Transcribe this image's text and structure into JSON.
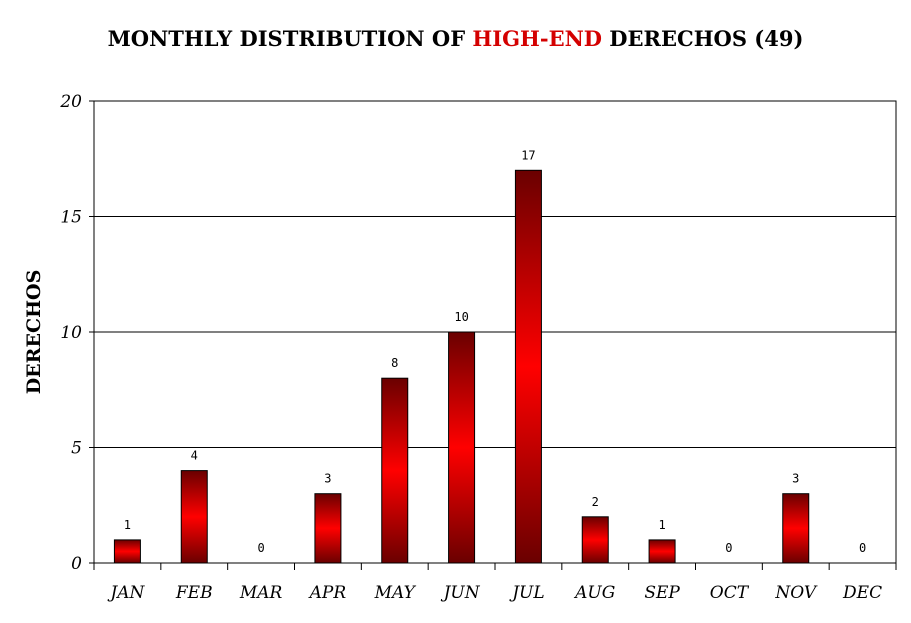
{
  "chart_data": {
    "type": "bar",
    "title_parts": [
      "MONTHLY DISTRIBUTION OF ",
      "HIGH-END",
      " DERECHOS (49)"
    ],
    "title_highlight_color": "#d40000",
    "xlabel": "",
    "ylabel": "DERECHOS",
    "categories": [
      "JAN",
      "FEB",
      "MAR",
      "APR",
      "MAY",
      "JUN",
      "JUL",
      "AUG",
      "SEP",
      "OCT",
      "NOV",
      "DEC"
    ],
    "values": [
      1,
      4,
      0,
      3,
      8,
      10,
      17,
      2,
      1,
      0,
      3,
      0
    ],
    "ylim": [
      0,
      20
    ],
    "yticks": [
      0,
      5,
      10,
      15,
      20
    ],
    "grid": true,
    "legend": "none",
    "bar_colors": {
      "center": "#ff0000",
      "edge": "#6a0000"
    }
  }
}
